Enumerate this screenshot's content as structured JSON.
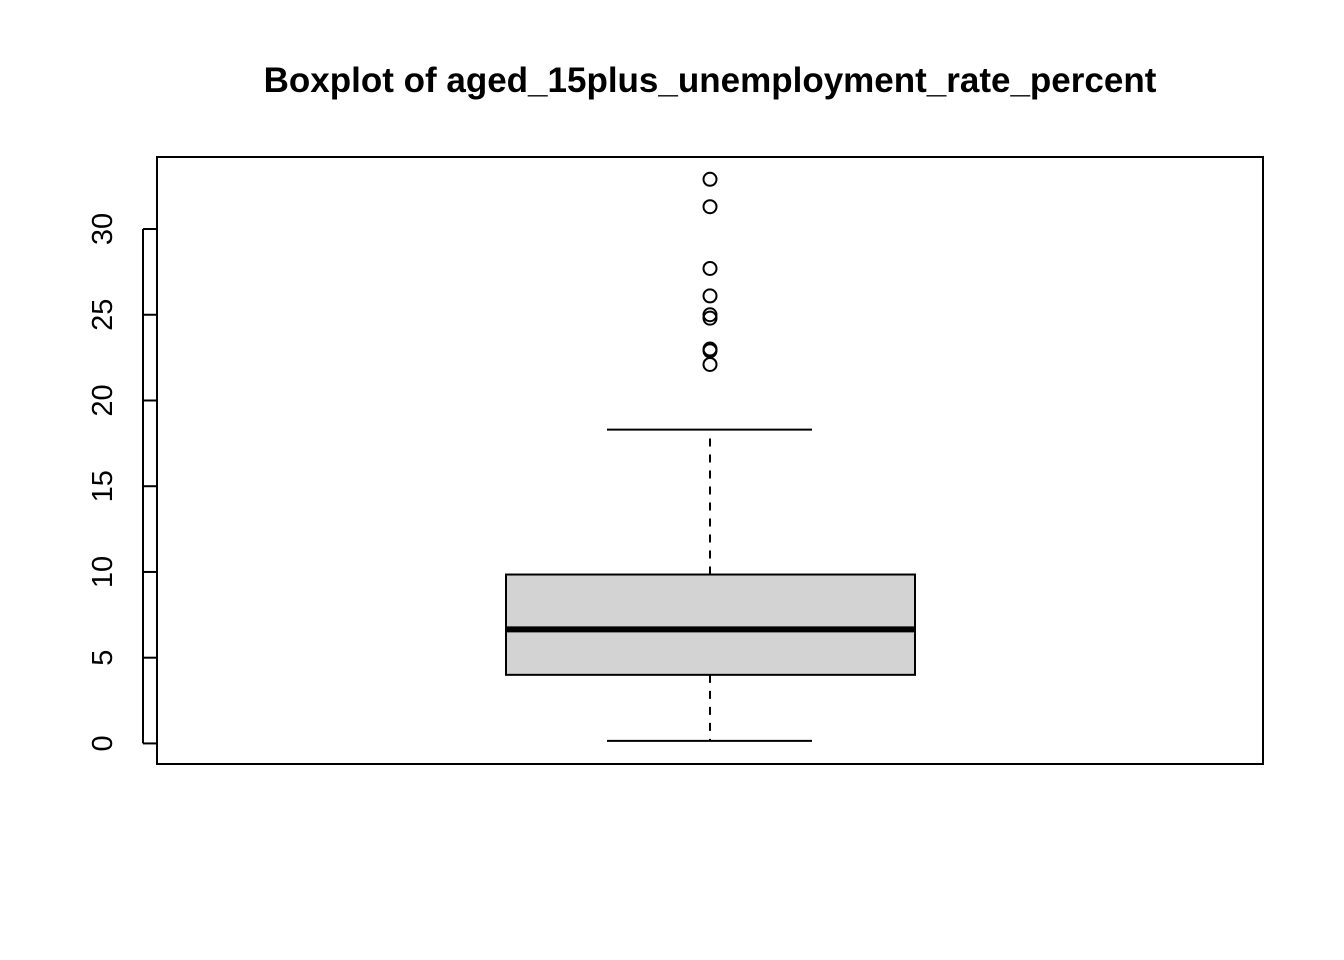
{
  "chart_data": {
    "type": "boxplot",
    "title": "Boxplot of aged_15plus_unemployment_rate_percent",
    "xlabel": "",
    "ylabel": "",
    "ylim": [
      -1.2,
      34.2
    ],
    "y_ticks": [
      0,
      5,
      10,
      15,
      20,
      25,
      30
    ],
    "y_tick_labels": [
      "0",
      "5",
      "10",
      "15",
      "20",
      "25",
      "30"
    ],
    "box": {
      "whisker_low": 0.15,
      "q1": 4.0,
      "median": 6.65,
      "q3": 9.85,
      "whisker_high": 18.3
    },
    "outliers": [
      22.1,
      22.9,
      23.0,
      24.8,
      25.0,
      26.1,
      27.7,
      31.3,
      32.9
    ],
    "colors": {
      "box_fill": "#d3d3d3",
      "stroke": "#000000"
    },
    "grid": false,
    "legend": "none"
  }
}
